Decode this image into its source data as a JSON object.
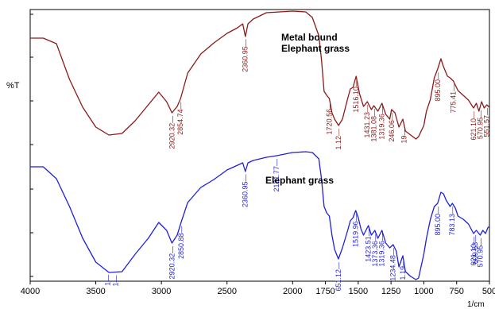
{
  "chart_data": {
    "type": "line",
    "ylabel": "%T",
    "xlabel": "1/cm",
    "xlim": [
      4000,
      500
    ],
    "x_ticks": [
      "4000",
      "3500",
      "3000",
      "2500",
      "2000",
      "1750",
      "1500",
      "1250",
      "1000",
      "750",
      "500"
    ],
    "grid": false,
    "legend": "none",
    "series": [
      {
        "name": "Metal bound Elephant grass",
        "color": "#8b1a1a",
        "label_lines": [
          "Metal bound",
          "Elephant grass"
        ],
        "points": [
          [
            4000,
            48
          ],
          [
            3900,
            48
          ],
          [
            3800,
            55
          ],
          [
            3700,
            100
          ],
          [
            3600,
            135
          ],
          [
            3500,
            160
          ],
          [
            3400,
            170
          ],
          [
            3300,
            168
          ],
          [
            3200,
            152
          ],
          [
            3100,
            132
          ],
          [
            3020,
            116
          ],
          [
            2960,
            128
          ],
          [
            2920,
            142
          ],
          [
            2880,
            134
          ],
          [
            2854,
            124
          ],
          [
            2800,
            92
          ],
          [
            2700,
            68
          ],
          [
            2600,
            54
          ],
          [
            2500,
            42
          ],
          [
            2420,
            35
          ],
          [
            2380,
            30
          ],
          [
            2360,
            46
          ],
          [
            2340,
            30
          ],
          [
            2300,
            24
          ],
          [
            2200,
            16
          ],
          [
            2000,
            14
          ],
          [
            1900,
            15
          ],
          [
            1850,
            22
          ],
          [
            1800,
            45
          ],
          [
            1780,
            75
          ],
          [
            1760,
            115
          ],
          [
            1740,
            120
          ],
          [
            1720,
            124
          ],
          [
            1700,
            142
          ],
          [
            1680,
            150
          ],
          [
            1650,
            158
          ],
          [
            1620,
            150
          ],
          [
            1580,
            124
          ],
          [
            1560,
            112
          ],
          [
            1540,
            110
          ],
          [
            1516,
            96
          ],
          [
            1490,
            118
          ],
          [
            1460,
            134
          ],
          [
            1431,
            128
          ],
          [
            1400,
            138
          ],
          [
            1381,
            133
          ],
          [
            1350,
            140
          ],
          [
            1319,
            130
          ],
          [
            1290,
            144
          ],
          [
            1260,
            150
          ],
          [
            1246,
            138
          ],
          [
            1220,
            142
          ],
          [
            1190,
            160
          ],
          [
            1160,
            150
          ],
          [
            1140,
            165
          ],
          [
            1100,
            170
          ],
          [
            1060,
            175
          ],
          [
            1040,
            172
          ],
          [
            1000,
            158
          ],
          [
            980,
            140
          ],
          [
            950,
            125
          ],
          [
            920,
            98
          ],
          [
            895,
            87
          ],
          [
            870,
            74
          ],
          [
            850,
            84
          ],
          [
            820,
            96
          ],
          [
            800,
            98
          ],
          [
            775,
            102
          ],
          [
            740,
            114
          ],
          [
            700,
            120
          ],
          [
            660,
            126
          ],
          [
            621,
            136
          ],
          [
            600,
            130
          ],
          [
            580,
            140
          ],
          [
            560,
            128
          ],
          [
            540,
            136
          ],
          [
            520,
            132
          ],
          [
            500,
            135
          ]
        ]
      },
      {
        "name": "Elephant grass",
        "color": "#1f1fdd",
        "label_lines": [
          "Elephant grass"
        ],
        "points": [
          [
            4000,
            210
          ],
          [
            3900,
            210
          ],
          [
            3800,
            225
          ],
          [
            3700,
            260
          ],
          [
            3600,
            300
          ],
          [
            3500,
            330
          ],
          [
            3400,
            343
          ],
          [
            3300,
            342
          ],
          [
            3200,
            320
          ],
          [
            3100,
            300
          ],
          [
            3020,
            280
          ],
          [
            2960,
            290
          ],
          [
            2920,
            306
          ],
          [
            2880,
            296
          ],
          [
            2850,
            280
          ],
          [
            2800,
            255
          ],
          [
            2700,
            236
          ],
          [
            2600,
            226
          ],
          [
            2500,
            214
          ],
          [
            2420,
            208
          ],
          [
            2380,
            205
          ],
          [
            2360,
            216
          ],
          [
            2340,
            205
          ],
          [
            2300,
            202
          ],
          [
            2200,
            198
          ],
          [
            2121,
            196
          ],
          [
            2000,
            192
          ],
          [
            1900,
            191
          ],
          [
            1850,
            192
          ],
          [
            1800,
            200
          ],
          [
            1780,
            225
          ],
          [
            1760,
            260
          ],
          [
            1740,
            268
          ],
          [
            1720,
            272
          ],
          [
            1700,
            296
          ],
          [
            1680,
            314
          ],
          [
            1651,
            326
          ],
          [
            1620,
            312
          ],
          [
            1580,
            290
          ],
          [
            1560,
            278
          ],
          [
            1540,
            274
          ],
          [
            1519,
            265
          ],
          [
            1500,
            274
          ],
          [
            1480,
            288
          ],
          [
            1460,
            296
          ],
          [
            1423,
            284
          ],
          [
            1400,
            296
          ],
          [
            1373,
            290
          ],
          [
            1350,
            300
          ],
          [
            1319,
            290
          ],
          [
            1290,
            306
          ],
          [
            1260,
            312
          ],
          [
            1234,
            308
          ],
          [
            1210,
            316
          ],
          [
            1190,
            336
          ],
          [
            1160,
            322
          ],
          [
            1140,
            342
          ],
          [
            1100,
            348
          ],
          [
            1060,
            352
          ],
          [
            1040,
            350
          ],
          [
            1000,
            320
          ],
          [
            980,
            300
          ],
          [
            950,
            276
          ],
          [
            920,
            260
          ],
          [
            895,
            256
          ],
          [
            870,
            242
          ],
          [
            850,
            244
          ],
          [
            830,
            252
          ],
          [
            800,
            260
          ],
          [
            783,
            256
          ],
          [
            760,
            262
          ],
          [
            740,
            272
          ],
          [
            700,
            276
          ],
          [
            660,
            282
          ],
          [
            621,
            294
          ],
          [
            600,
            290
          ],
          [
            570,
            296
          ],
          [
            550,
            290
          ],
          [
            530,
            294
          ],
          [
            510,
            286
          ],
          [
            500,
            286
          ]
        ]
      }
    ],
    "annotations": [
      {
        "series": 0,
        "x": 2920.32,
        "text": "2920.32"
      },
      {
        "series": 0,
        "x": 2854.74,
        "text": "2854.74"
      },
      {
        "series": 0,
        "x": 2360.95,
        "text": "2360.95"
      },
      {
        "series": 0,
        "x": 1720.56,
        "text": "1720.56"
      },
      {
        "series": 0,
        "x": 1650,
        "text": "1.12"
      },
      {
        "series": 0,
        "x": 1516.1,
        "text": "1516.10"
      },
      {
        "series": 0,
        "x": 1431.23,
        "text": "1431.23"
      },
      {
        "series": 0,
        "x": 1381.08,
        "text": "1381.08"
      },
      {
        "series": 0,
        "x": 1319.36,
        "text": "1319.36"
      },
      {
        "series": 0,
        "x": 1246.06,
        "text": "246.06"
      },
      {
        "series": 0,
        "x": 1150,
        "text": "19"
      },
      {
        "series": 0,
        "x": 895,
        "text": "895.00"
      },
      {
        "series": 0,
        "x": 775.41,
        "text": "775.41"
      },
      {
        "series": 0,
        "x": 621.1,
        "text": "621.10"
      },
      {
        "series": 0,
        "x": 570.95,
        "text": "570.95"
      },
      {
        "series": 0,
        "x": 520,
        "text": "551.57"
      },
      {
        "series": 1,
        "x": 3410,
        "text": "1"
      },
      {
        "series": 1,
        "x": 3350,
        "text": "1"
      },
      {
        "series": 1,
        "x": 2920.32,
        "text": "2920.32"
      },
      {
        "series": 1,
        "x": 2850.88,
        "text": "2850.88"
      },
      {
        "series": 1,
        "x": 2360.95,
        "text": "2360.95"
      },
      {
        "series": 1,
        "x": 2121.77,
        "text": "2121.77"
      },
      {
        "series": 1,
        "x": 1651.12,
        "text": "651.12"
      },
      {
        "series": 1,
        "x": 1519.96,
        "text": "1519.96"
      },
      {
        "series": 1,
        "x": 1423.51,
        "text": "1423.51"
      },
      {
        "series": 1,
        "x": 1373.36,
        "text": "1373.36"
      },
      {
        "series": 1,
        "x": 1319.36,
        "text": "1319.36"
      },
      {
        "series": 1,
        "x": 1234.48,
        "text": "1234.48"
      },
      {
        "series": 1,
        "x": 1160,
        "text": "1.19"
      },
      {
        "series": 1,
        "x": 895,
        "text": "895.00"
      },
      {
        "series": 1,
        "x": 783.13,
        "text": "783.13"
      },
      {
        "series": 1,
        "x": 621.1,
        "text": "621.10"
      },
      {
        "series": 1,
        "x": 609.53,
        "text": "609.53"
      },
      {
        "series": 1,
        "x": 570.95,
        "text": "570.95"
      }
    ]
  }
}
